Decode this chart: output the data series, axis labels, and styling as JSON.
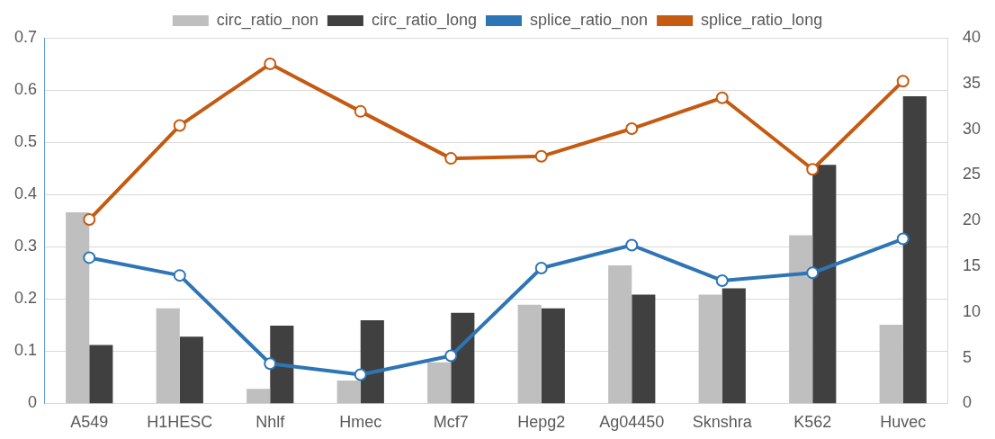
{
  "chart_data": {
    "type": "bar",
    "categories": [
      "A549",
      "H1HESC",
      "Nhlf",
      "Hmec",
      "Mcf7",
      "Hepg2",
      "Ag04450",
      "Sknshra",
      "K562",
      "Huvec"
    ],
    "series": [
      {
        "name": "circ_ratio_non",
        "axis": "y2",
        "color": "#bfbfbf",
        "values": [
          20.9,
          10.4,
          1.6,
          2.5,
          4.5,
          10.8,
          15.1,
          11.9,
          18.4,
          8.6
        ]
      },
      {
        "name": "circ_ratio_long",
        "axis": "y2",
        "color": "#404040",
        "values": [
          6.4,
          7.3,
          8.5,
          9.1,
          9.9,
          10.4,
          11.9,
          12.6,
          26.1,
          33.6
        ]
      },
      {
        "name": "splice_ratio_non",
        "type": "line",
        "axis": "y",
        "color": "#2e75b6",
        "values": [
          0.279,
          0.245,
          0.076,
          0.055,
          0.091,
          0.259,
          0.303,
          0.235,
          0.25,
          0.315
        ]
      },
      {
        "name": "splice_ratio_long",
        "type": "line",
        "axis": "y",
        "color": "#c55a11",
        "values": [
          0.352,
          0.532,
          0.65,
          0.559,
          0.469,
          0.473,
          0.526,
          0.585,
          0.448,
          0.617
        ]
      }
    ],
    "ylim": [
      0,
      0.7
    ],
    "yticks": [
      0,
      0.1,
      0.2,
      0.3,
      0.4,
      0.5,
      0.6,
      0.7
    ],
    "y2lim": [
      0,
      40
    ],
    "y2ticks": [
      0,
      5,
      10,
      15,
      20,
      25,
      30,
      35,
      40
    ],
    "grid": "y",
    "legend": "top",
    "marker": "circle",
    "line_style": "solid"
  }
}
